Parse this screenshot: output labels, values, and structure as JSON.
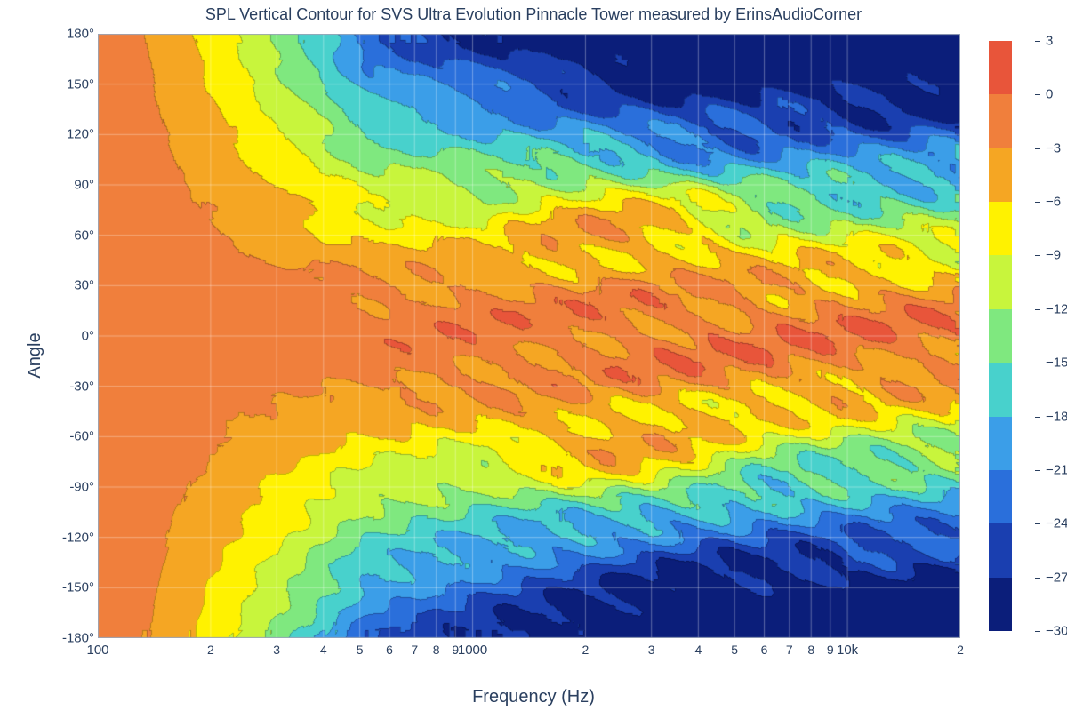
{
  "title": "SPL Vertical Contour for SVS Ultra Evolution Pinnacle Tower measured by ErinsAudioCorner",
  "x_axis": {
    "label": "Frequency (Hz)",
    "scale": "log",
    "min": 100,
    "max": 20000,
    "major_ticks": [
      {
        "v": 100,
        "label": "100"
      },
      {
        "v": 1000,
        "label": "1000"
      },
      {
        "v": 10000,
        "label": "10k"
      }
    ],
    "minor_ticks": [
      {
        "v": 200,
        "label": "2"
      },
      {
        "v": 300,
        "label": "3"
      },
      {
        "v": 400,
        "label": "4"
      },
      {
        "v": 500,
        "label": "5"
      },
      {
        "v": 600,
        "label": "6"
      },
      {
        "v": 700,
        "label": "7"
      },
      {
        "v": 800,
        "label": "8"
      },
      {
        "v": 900,
        "label": "9"
      },
      {
        "v": 2000,
        "label": "2"
      },
      {
        "v": 3000,
        "label": "3"
      },
      {
        "v": 4000,
        "label": "4"
      },
      {
        "v": 5000,
        "label": "5"
      },
      {
        "v": 6000,
        "label": "6"
      },
      {
        "v": 7000,
        "label": "7"
      },
      {
        "v": 8000,
        "label": "8"
      },
      {
        "v": 9000,
        "label": "9"
      },
      {
        "v": 20000,
        "label": "2"
      }
    ]
  },
  "y_axis": {
    "label": "Angle",
    "scale": "linear",
    "min": -180,
    "max": 180,
    "ticks": [
      {
        "v": 180,
        "label": "180°"
      },
      {
        "v": 150,
        "label": "150°"
      },
      {
        "v": 120,
        "label": "120°"
      },
      {
        "v": 90,
        "label": "90°"
      },
      {
        "v": 60,
        "label": "60°"
      },
      {
        "v": 30,
        "label": "30°"
      },
      {
        "v": 0,
        "label": "0°"
      },
      {
        "v": -30,
        "label": "-30°"
      },
      {
        "v": -60,
        "label": "-60°"
      },
      {
        "v": -90,
        "label": "-90°"
      },
      {
        "v": -120,
        "label": "-120°"
      },
      {
        "v": -150,
        "label": "-150°"
      },
      {
        "v": -180,
        "label": "-180°"
      }
    ]
  },
  "colorbar": {
    "min": -30,
    "max": 3,
    "levels": [
      {
        "v": 3,
        "label": "3",
        "color": "#d62728"
      },
      {
        "v": 0,
        "label": "0",
        "color": "#e8553a"
      },
      {
        "v": -3,
        "label": "−3",
        "color": "#f07f3c"
      },
      {
        "v": -6,
        "label": "−6",
        "color": "#f5a623"
      },
      {
        "v": -9,
        "label": "−9",
        "color": "#fff200"
      },
      {
        "v": -12,
        "label": "−12",
        "color": "#c8f53c"
      },
      {
        "v": -15,
        "label": "−15",
        "color": "#7fe87f"
      },
      {
        "v": -18,
        "label": "−18",
        "color": "#48d1cc"
      },
      {
        "v": -21,
        "label": "−21",
        "color": "#3b9ee8"
      },
      {
        "v": -24,
        "label": "−24",
        "color": "#2a6fdb"
      },
      {
        "v": -27,
        "label": "−27",
        "color": "#1a3fb0"
      },
      {
        "v": -30,
        "label": "−30",
        "color": "#0b1e7a"
      }
    ]
  },
  "plot": {
    "type": "contour-heatmap",
    "background_color": "#ffffff",
    "grid_color": "#ffffff",
    "grid_alpha": 0.35,
    "grid_width": 1,
    "contour_line_color": "#000000",
    "contour_line_alpha": 0.25,
    "contour_line_width": 0.6,
    "seed": 987654,
    "n_freq_cells": 160,
    "n_angle_cells": 72,
    "lobe_half_angle_deg": 35,
    "symmetry": "approximate-vertical",
    "roughness": 1.8,
    "note": "Heatmap values procedurally generated to approximate the visual pattern: main lobe around 0° across all frequencies (~0 dB), off-axis falloff reaching ~−30 dB at ±180° above ~2 kHz, with interference ripples between 500 Hz and 20 kHz."
  }
}
